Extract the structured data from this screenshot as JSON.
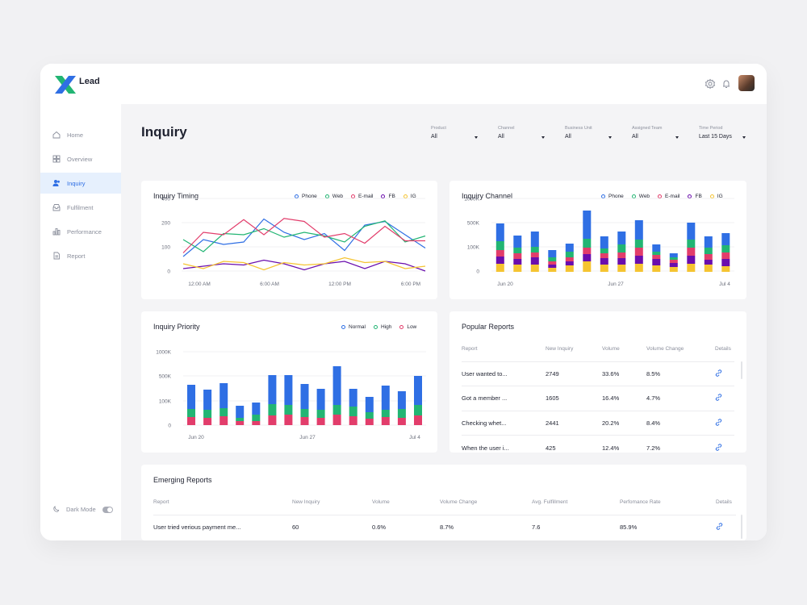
{
  "brand": {
    "name": "Lead",
    "colors": {
      "green": "#22b573",
      "blue": "#2f6fe4"
    }
  },
  "header": {
    "icons": [
      "gear-icon",
      "bell-icon",
      "avatar"
    ]
  },
  "sidebar": {
    "items": [
      {
        "label": "Home",
        "icon": "home-icon"
      },
      {
        "label": "Overview",
        "icon": "grid-icon"
      },
      {
        "label": "Inquiry",
        "icon": "users-icon",
        "active": true
      },
      {
        "label": "Fulfilment",
        "icon": "inbox-icon"
      },
      {
        "label": "Performance",
        "icon": "bar-chart-icon"
      },
      {
        "label": "Report",
        "icon": "document-icon"
      }
    ],
    "dark_mode_label": "Dark Mode"
  },
  "page": {
    "title": "Inquiry"
  },
  "filters": [
    {
      "label": "Product",
      "value": "All"
    },
    {
      "label": "Channel",
      "value": "All"
    },
    {
      "label": "Business Unit",
      "value": "All"
    },
    {
      "label": "Assigned Team",
      "value": "All"
    },
    {
      "label": "Time Period",
      "value": "Last 15 Days"
    }
  ],
  "cards": {
    "timing": {
      "title": "Inquiry Timing"
    },
    "channel": {
      "title": "Inquiry Channel"
    },
    "priority": {
      "title": "Inquiry Priority"
    },
    "popular": {
      "title": "Popular Reports"
    },
    "emerging": {
      "title": "Emerging Reports"
    }
  },
  "chart_data": [
    {
      "id": "timing",
      "type": "line",
      "title": "Inquiry Timing",
      "ylim": [
        0,
        400
      ],
      "yticks": [
        "400",
        "200",
        "100",
        "0"
      ],
      "xticks": [
        "12:00 AM",
        "6:00 AM",
        "12:00 PM",
        "6:00 PM"
      ],
      "colors": {
        "Phone": "#2f6fe4",
        "Web": "#22b573",
        "E-mail": "#e23d6b",
        "FB": "#6a0dad",
        "IG": "#f5c431"
      },
      "series": [
        {
          "name": "Phone",
          "values": [
            60,
            130,
            110,
            120,
            230,
            160,
            130,
            155,
            85,
            190,
            210,
            150,
            95
          ]
        },
        {
          "name": "Web",
          "values": [
            130,
            80,
            155,
            150,
            175,
            140,
            160,
            145,
            120,
            185,
            215,
            120,
            145
          ]
        },
        {
          "name": "E-mail",
          "values": [
            75,
            160,
            150,
            225,
            150,
            235,
            210,
            140,
            155,
            115,
            185,
            125,
            125
          ]
        },
        {
          "name": "FB",
          "values": [
            10,
            20,
            30,
            25,
            45,
            30,
            5,
            30,
            40,
            10,
            40,
            30,
            0
          ]
        },
        {
          "name": "IG",
          "values": [
            30,
            10,
            40,
            35,
            5,
            35,
            25,
            30,
            55,
            35,
            40,
            10,
            20
          ]
        }
      ],
      "legend": [
        "Phone",
        "Web",
        "E-mail",
        "FB",
        "IG"
      ]
    },
    {
      "id": "channel",
      "type": "bar",
      "stacked": true,
      "title": "Inquiry Channel",
      "yticks": [
        "1000K",
        "500K",
        "100K",
        "0"
      ],
      "xticks": [
        "Jun 20",
        "Jun 27",
        "Jul 4"
      ],
      "colors": {
        "IG": "#f5c431",
        "FB": "#6a0dad",
        "E-mail": "#e23d6b",
        "Web": "#22b573",
        "Phone": "#2f6fe4"
      },
      "series": [
        {
          "name": "IG",
          "values": [
            10,
            9,
            9,
            5,
            8,
            13,
            9,
            9,
            10,
            8,
            6,
            10,
            9,
            7
          ]
        },
        {
          "name": "FB",
          "values": [
            9,
            7,
            9,
            4,
            5,
            9,
            8,
            8,
            10,
            8,
            5,
            10,
            6,
            9
          ]
        },
        {
          "name": "E-mail",
          "values": [
            8,
            7,
            6,
            4,
            5,
            8,
            6,
            7,
            10,
            5,
            4,
            10,
            7,
            8
          ]
        },
        {
          "name": "Web",
          "values": [
            11,
            7,
            7,
            5,
            7,
            11,
            6,
            10,
            10,
            4,
            3,
            10,
            8,
            9
          ]
        },
        {
          "name": "Phone",
          "values": [
            22,
            15,
            19,
            9,
            10,
            35,
            15,
            16,
            24,
            9,
            5,
            21,
            14,
            15
          ]
        }
      ],
      "legend": [
        "Phone",
        "Web",
        "E-mail",
        "FB",
        "IG"
      ]
    },
    {
      "id": "priority",
      "type": "bar",
      "stacked": true,
      "title": "Inquiry Priority",
      "yticks": [
        "1000K",
        "500K",
        "100K",
        "0"
      ],
      "xticks": [
        "Jun 20",
        "Jun 27",
        "Jul 4"
      ],
      "colors": {
        "Low": "#e23d6b",
        "High": "#22b573",
        "Normal": "#2f6fe4"
      },
      "series": [
        {
          "name": "Low",
          "values": [
            10,
            9,
            11,
            5,
            5,
            12,
            13,
            10,
            9,
            13,
            11,
            8,
            10,
            9,
            12
          ]
        },
        {
          "name": "High",
          "values": [
            10,
            10,
            10,
            4,
            8,
            14,
            12,
            10,
            10,
            12,
            12,
            8,
            9,
            11,
            13
          ]
        },
        {
          "name": "Normal",
          "values": [
            30,
            25,
            31,
            15,
            15,
            36,
            37,
            31,
            26,
            48,
            22,
            19,
            30,
            22,
            36
          ]
        }
      ],
      "legend": [
        "Normal",
        "High",
        "Low"
      ]
    }
  ],
  "popular_reports": {
    "columns": [
      "Report",
      "New Inquiry",
      "Volume",
      "Volume Change",
      "Details"
    ],
    "rows": [
      [
        "User wanted to...",
        "2749",
        "33.6%",
        "8.5%"
      ],
      [
        "Got a member ...",
        "1605",
        "16.4%",
        "4.7%"
      ],
      [
        "Checking whet...",
        "2441",
        "20.2%",
        "8.4%"
      ],
      [
        "When the user i...",
        "425",
        "12.4%",
        "7.2%"
      ]
    ]
  },
  "emerging_reports": {
    "columns": [
      "Report",
      "New Inquiry",
      "Volume",
      "Volume Change",
      "Avg. Fulfillment",
      "Perfomance Rate",
      "Details"
    ],
    "rows": [
      [
        "User tried verious payment me...",
        "60",
        "0.6%",
        "8.7%",
        "7.6",
        "85.9%"
      ]
    ]
  }
}
